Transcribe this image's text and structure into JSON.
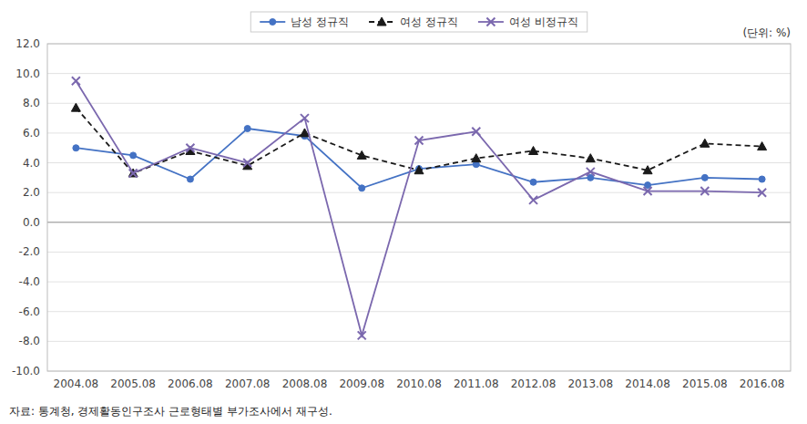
{
  "chart_data": {
    "type": "line",
    "categories": [
      "2004.08",
      "2005.08",
      "2006.08",
      "2007.08",
      "2008.08",
      "2009.08",
      "2010.08",
      "2011.08",
      "2012.08",
      "2013.08",
      "2014.08",
      "2015.08",
      "2016.08"
    ],
    "series": [
      {
        "name": "남성 정규직",
        "color": "#4472C4",
        "marker": "circle",
        "line_style": "solid",
        "values": [
          5.0,
          4.5,
          2.9,
          6.3,
          5.8,
          2.3,
          3.6,
          3.9,
          2.7,
          3.0,
          2.5,
          3.0,
          2.9
        ]
      },
      {
        "name": "여성 정규직",
        "color": "#1a1a1a",
        "marker": "triangle",
        "line_style": "dashed",
        "values": [
          7.7,
          3.3,
          4.8,
          3.8,
          6.0,
          4.5,
          3.5,
          4.3,
          4.8,
          4.3,
          3.5,
          5.3,
          5.1
        ]
      },
      {
        "name": "여성 비정규직",
        "color": "#7B68AE",
        "marker": "x",
        "line_style": "solid",
        "values": [
          9.5,
          3.3,
          5.0,
          4.0,
          7.0,
          -7.6,
          5.5,
          6.1,
          1.5,
          3.4,
          2.1,
          2.1,
          2.0
        ]
      }
    ],
    "ylim": [
      -10.0,
      12.0
    ],
    "yticks": [
      {
        "value": -10,
        "label": "-10.0"
      },
      {
        "value": -8,
        "label": "-8.0"
      },
      {
        "value": -6,
        "label": "-6.0"
      },
      {
        "value": -4,
        "label": "-4.0"
      },
      {
        "value": -2,
        "label": "-2.0"
      },
      {
        "value": 0,
        "label": "0.0"
      },
      {
        "value": 2,
        "label": "2.0"
      },
      {
        "value": 4,
        "label": "4.0"
      },
      {
        "value": 6,
        "label": "6.0"
      },
      {
        "value": 8,
        "label": "8.0"
      },
      {
        "value": 10,
        "label": "10.0"
      },
      {
        "value": 12,
        "label": "12.0"
      }
    ],
    "grid": true,
    "legend": "top",
    "annotations": [
      "(단위: %)",
      "자료: 통계청, 경제활동인구조사 근로형태별 부가조사에서 재구성."
    ]
  }
}
